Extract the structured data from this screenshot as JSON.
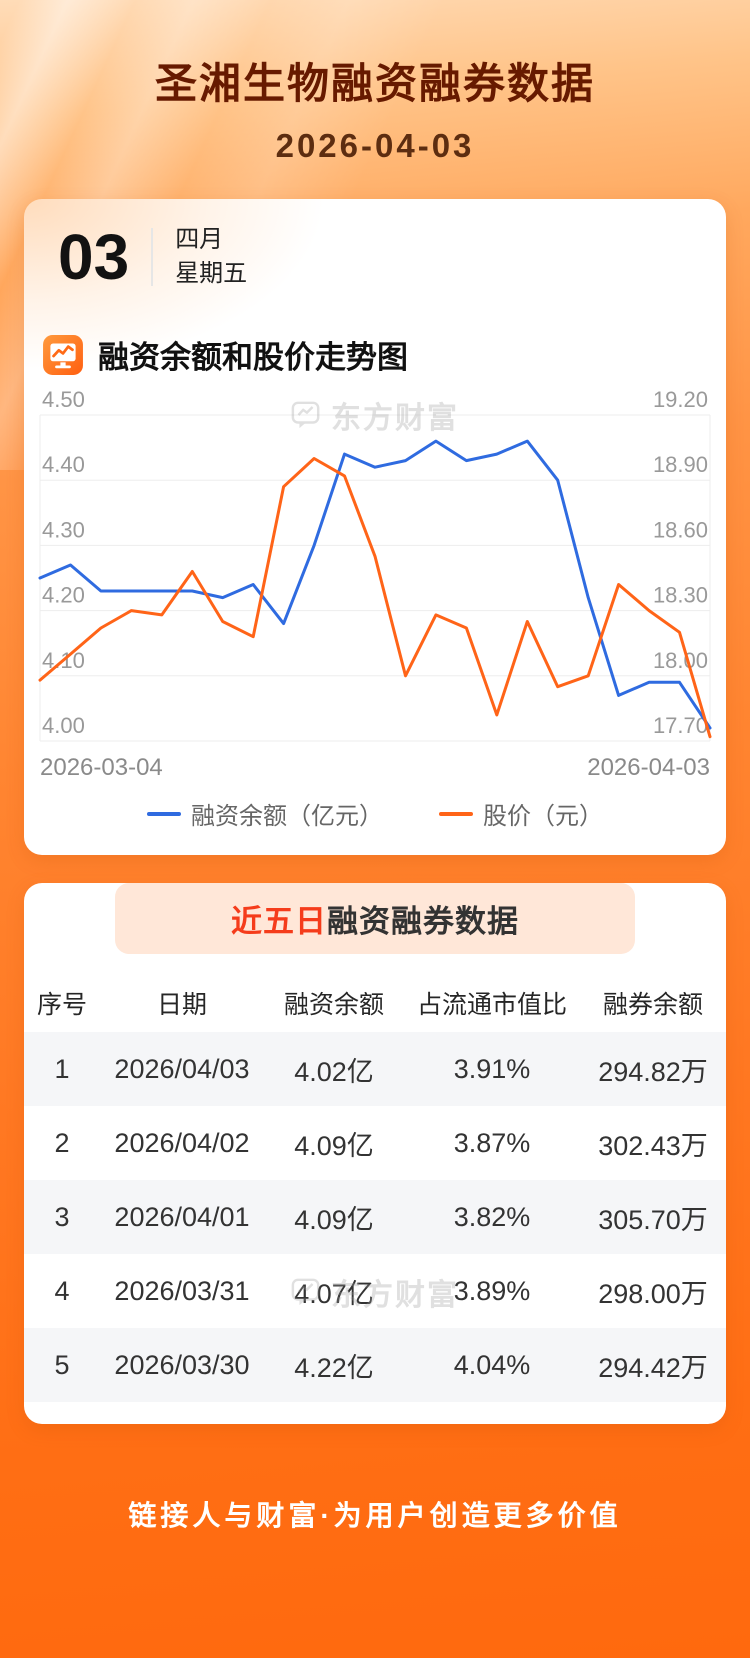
{
  "page": {
    "title": "圣湘生物融资融券数据",
    "date": "2026-04-03",
    "footer": "链接人与财富·为用户创造更多价值",
    "watermark": "东方财富"
  },
  "calendar": {
    "day": "03",
    "month": "四月",
    "weekday": "星期五"
  },
  "chart_section": {
    "title": "融资余额和股价走势图"
  },
  "chart_data": {
    "type": "line",
    "title": "融资余额和股价走势图",
    "x_start_label": "2026-03-04",
    "x_end_label": "2026-04-03",
    "grid": true,
    "legend_position": "bottom",
    "left_axis": {
      "label": "融资余额（亿元）",
      "min": 4.0,
      "max": 4.5,
      "ticks": [
        "4.50",
        "4.40",
        "4.30",
        "4.20",
        "4.10",
        "4.00"
      ]
    },
    "right_axis": {
      "label": "股价（元）",
      "min": 17.7,
      "max": 19.2,
      "ticks": [
        "19.20",
        "18.90",
        "18.60",
        "18.30",
        "18.00",
        "17.70"
      ]
    },
    "series": [
      {
        "name": "融资余额（亿元）",
        "axis": "left",
        "color": "#2f6be0",
        "values": [
          4.25,
          4.27,
          4.23,
          4.23,
          4.23,
          4.23,
          4.22,
          4.24,
          4.18,
          4.3,
          4.44,
          4.42,
          4.43,
          4.46,
          4.43,
          4.44,
          4.46,
          4.4,
          4.22,
          4.07,
          4.09,
          4.09,
          4.02
        ]
      },
      {
        "name": "股价（元）",
        "axis": "right",
        "color": "#ff6418",
        "values": [
          17.98,
          18.1,
          18.22,
          18.3,
          18.28,
          18.48,
          18.25,
          18.18,
          18.87,
          19.0,
          18.92,
          18.55,
          18.0,
          18.28,
          18.22,
          17.82,
          18.25,
          17.95,
          18.0,
          18.42,
          18.3,
          18.2,
          17.72
        ]
      }
    ]
  },
  "table_section": {
    "title_highlight": "近五日",
    "title_rest": "融资融券数据",
    "headers": [
      "序号",
      "日期",
      "融资余额",
      "占流通市值比",
      "融券余额"
    ],
    "rows": [
      [
        "1",
        "2026/04/03",
        "4.02亿",
        "3.91%",
        "294.82万"
      ],
      [
        "2",
        "2026/04/02",
        "4.09亿",
        "3.87%",
        "302.43万"
      ],
      [
        "3",
        "2026/04/01",
        "4.09亿",
        "3.82%",
        "305.70万"
      ],
      [
        "4",
        "2026/03/31",
        "4.07亿",
        "3.89%",
        "298.00万"
      ],
      [
        "5",
        "2026/03/30",
        "4.22亿",
        "4.04%",
        "294.42万"
      ]
    ]
  },
  "colors": {
    "title": "#671a00",
    "accent_orange": "#ff6418",
    "accent_blue": "#2f6be0",
    "banner_bg": "#ffe7d8",
    "banner_highlight": "#f53c1b",
    "stripe": "#f5f6f8"
  }
}
